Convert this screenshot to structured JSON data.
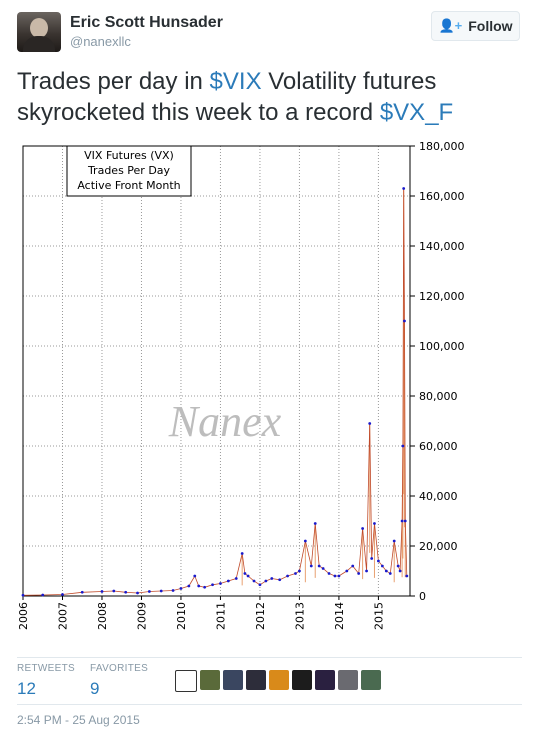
{
  "user": {
    "name": "Eric Scott Hunsader",
    "handle": "@nanexllc"
  },
  "follow_button": {
    "label": "Follow",
    "icon": "add-user-icon"
  },
  "tweet": {
    "parts": [
      {
        "text": "Trades per day in ",
        "link": false
      },
      {
        "text": "$VIX",
        "link": true
      },
      {
        "text": " Volatility futures skyrocketed this week to a record ",
        "link": false
      },
      {
        "text": "$VX_F",
        "link": true
      }
    ]
  },
  "chart_data": {
    "type": "line",
    "title_lines": [
      "VIX Futures (VX)",
      "Trades Per Day",
      "Active Front Month"
    ],
    "watermark": "Nanex",
    "ylim": [
      0,
      180000
    ],
    "yticks": [
      "0",
      "20,000",
      "40,000",
      "60,000",
      "80,000",
      "100,000",
      "120,000",
      "140,000",
      "160,000",
      "180,000"
    ],
    "xticks": [
      "2006",
      "2007",
      "2008",
      "2009",
      "2010",
      "2011",
      "2012",
      "2013",
      "2014",
      "2015"
    ],
    "xlim": [
      2006,
      2015.8
    ],
    "grid": true,
    "series": [
      {
        "x": [
          2006.0,
          2006.5,
          2007.0,
          2007.5,
          2008.0,
          2008.3,
          2008.6,
          2008.9,
          2009.2,
          2009.5,
          2009.8,
          2010.0,
          2010.2,
          2010.35,
          2010.45,
          2010.6,
          2010.8,
          2011.0,
          2011.2,
          2011.4,
          2011.55,
          2011.62,
          2011.7,
          2011.85,
          2012.0,
          2012.15,
          2012.3,
          2012.5,
          2012.7,
          2012.9,
          2013.0,
          2013.15,
          2013.3,
          2013.4,
          2013.5,
          2013.6,
          2013.75,
          2013.9,
          2014.0,
          2014.2,
          2014.35,
          2014.5,
          2014.6,
          2014.7,
          2014.78,
          2014.83,
          2014.9,
          2015.0,
          2015.1,
          2015.2,
          2015.3,
          2015.4,
          2015.5,
          2015.55,
          2015.6,
          2015.62,
          2015.64,
          2015.66,
          2015.68,
          2015.72
        ],
        "y": [
          300,
          400,
          600,
          1500,
          1800,
          2000,
          1500,
          1200,
          1800,
          2000,
          2200,
          3000,
          4000,
          8000,
          4000,
          3500,
          4500,
          5000,
          6000,
          7000,
          17000,
          9000,
          8000,
          6000,
          4500,
          6000,
          7000,
          6500,
          8000,
          9000,
          10000,
          22000,
          12000,
          29000,
          12000,
          11000,
          9000,
          8000,
          8000,
          10000,
          12000,
          9000,
          27000,
          10000,
          69000,
          15000,
          29000,
          14000,
          12000,
          10000,
          9000,
          22000,
          12000,
          10000,
          30000,
          60000,
          163000,
          110000,
          30000,
          8000
        ]
      }
    ]
  },
  "stats": [
    {
      "label": "RETWEETS",
      "value": "12"
    },
    {
      "label": "FAVORITES",
      "value": "9"
    }
  ],
  "favoriters_colors": [
    "#ffffff",
    "#5a6a3a",
    "#3a4660",
    "#2d2d3a",
    "#d98a1a",
    "#1c1c1c",
    "#2a2040",
    "#6a6a70",
    "#4a6a50"
  ],
  "timestamp": "2:54 PM - 25 Aug 2015"
}
